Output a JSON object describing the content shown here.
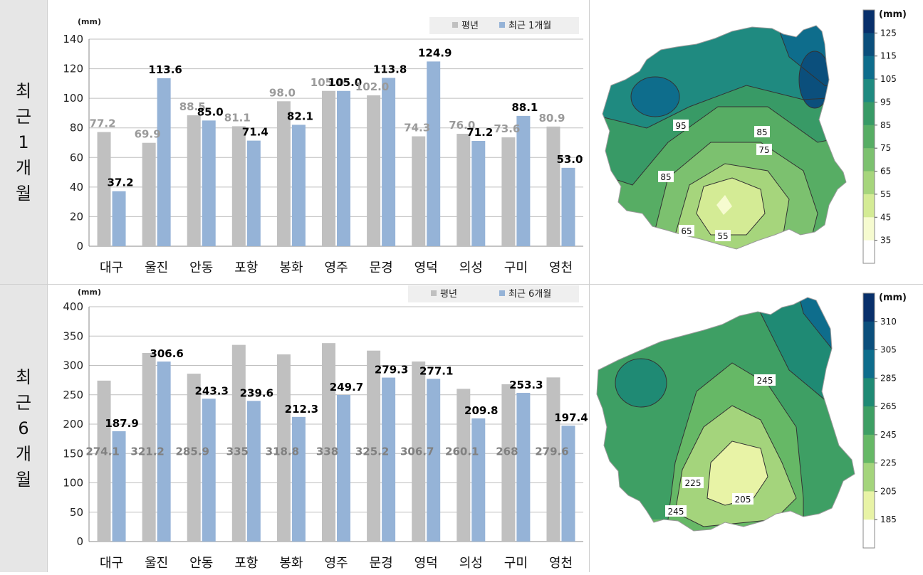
{
  "row_labels": [
    [
      "최",
      "근",
      "1",
      "개",
      "월"
    ],
    [
      "최",
      "근",
      "6",
      "개",
      "월"
    ]
  ],
  "colors": {
    "avg": "#c0c0c0",
    "recent": "#95b3d7",
    "grid": "#bfbfbf"
  },
  "chart_data": [
    {
      "type": "bar",
      "unit_label": "(mm)",
      "categories": [
        "대구",
        "울진",
        "안동",
        "포항",
        "봉화",
        "영주",
        "문경",
        "영덕",
        "의성",
        "구미",
        "영천"
      ],
      "series": [
        {
          "name": "평년",
          "values": [
            77.2,
            69.9,
            88.5,
            81.1,
            98.0,
            105.0,
            102.0,
            74.3,
            76.0,
            73.6,
            80.9
          ]
        },
        {
          "name": "최근 1개월",
          "values": [
            37.2,
            113.6,
            85.0,
            71.4,
            82.1,
            105.0,
            113.8,
            124.9,
            71.2,
            88.1,
            53.0
          ]
        }
      ],
      "avg_labels": [
        "77.2",
        "69.9",
        "88.5",
        "81.1",
        "98.0",
        "105.0",
        "102.0",
        "74.3",
        "76.0",
        "73.6",
        "80.9"
      ],
      "recent_labels": [
        "37.2",
        "113.6",
        "85.0",
        "71.4",
        "82.1",
        "105.0",
        "113.8",
        "124.9",
        "71.2",
        "88.1",
        "53.0"
      ],
      "ylim": [
        0,
        140
      ],
      "yticks": [
        0,
        20,
        40,
        60,
        80,
        100,
        120,
        140
      ],
      "legend_position": "top-right",
      "grid": true
    },
    {
      "type": "bar",
      "unit_label": "(mm)",
      "categories": [
        "대구",
        "울진",
        "안동",
        "포항",
        "봉화",
        "영주",
        "문경",
        "영덕",
        "의성",
        "구미",
        "영천"
      ],
      "series": [
        {
          "name": "평년",
          "values": [
            274.1,
            321.2,
            285.9,
            335,
            318.8,
            338,
            325.2,
            306.7,
            260.1,
            268,
            279.6
          ]
        },
        {
          "name": "최근 6개월",
          "values": [
            187.9,
            306.6,
            243.3,
            239.6,
            212.3,
            249.7,
            279.3,
            277.1,
            209.8,
            253.3,
            197.4
          ]
        }
      ],
      "avg_labels": [
        "274.1",
        "321.2",
        "285.9",
        "335",
        "318.8",
        "338",
        "325.2",
        "306.7",
        "260.1",
        "268",
        "279.6"
      ],
      "recent_labels": [
        "187.9",
        "306.6",
        "243.3",
        "239.6",
        "212.3",
        "249.7",
        "279.3",
        "277.1",
        "209.8",
        "253.3",
        "197.4"
      ],
      "ylim": [
        0,
        400
      ],
      "yticks": [
        0,
        50,
        100,
        150,
        200,
        250,
        300,
        350,
        400
      ],
      "legend_position": "top-right",
      "grid": true
    }
  ],
  "maps": [
    {
      "unit_label": "(mm)",
      "colorbar_levels": [
        "125",
        "115",
        "105",
        "95",
        "85",
        "75",
        "65",
        "55",
        "45",
        "35"
      ],
      "colorbar_colors": [
        "#08306b",
        "#0b4f7c",
        "#0e6d8c",
        "#1f8a80",
        "#389a66",
        "#57ad64",
        "#7cc16f",
        "#a6d57c",
        "#d4eb95",
        "#f6fbd0",
        "#ffffff"
      ],
      "contour_labels": [
        "95",
        "85",
        "75",
        "85",
        "65",
        "55"
      ]
    },
    {
      "unit_label": "(mm)",
      "colorbar_levels": [
        "310",
        "305",
        "285",
        "265",
        "245",
        "225",
        "205",
        "185"
      ],
      "colorbar_colors": [
        "#08306b",
        "#0b4f7c",
        "#0e6d8c",
        "#1f8a74",
        "#3e9f64",
        "#66b866",
        "#a4d47c",
        "#e8f3a6",
        "#ffffff"
      ],
      "contour_labels": [
        "245",
        "225",
        "205",
        "245"
      ]
    }
  ]
}
